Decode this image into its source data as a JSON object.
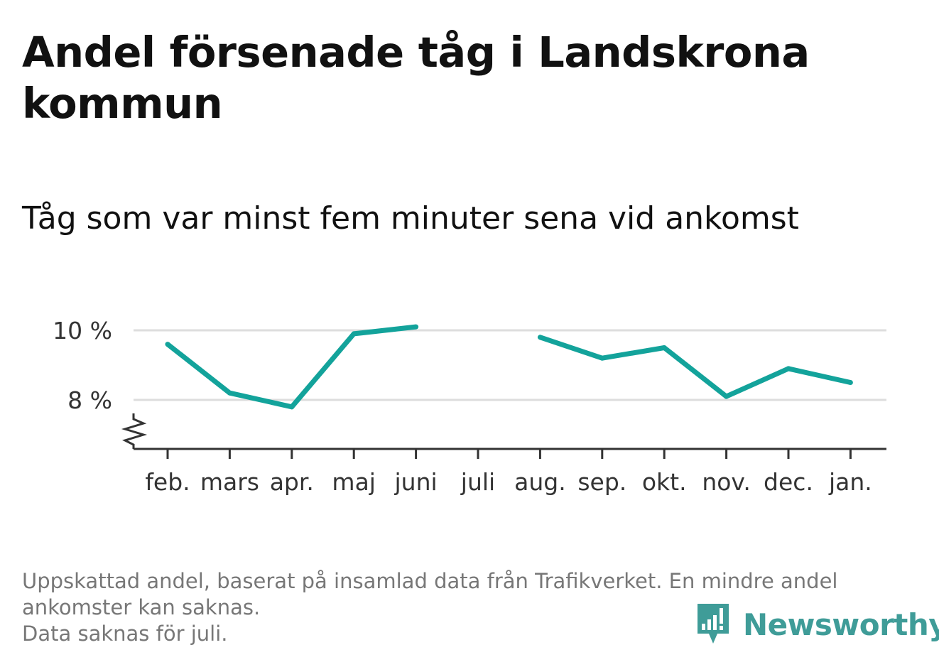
{
  "header": {
    "title": "Andel försenade tåg i Landskrona kommun",
    "subtitle": "Tåg som var minst fem minuter sena vid ankomst"
  },
  "footnote": {
    "line1": "Uppskattad andel, baserat på insamlad data från Trafikverket. En mindre andel",
    "line2": "ankomster kan saknas.",
    "line3": "Data saknas för juli."
  },
  "brand": {
    "name": "Newsworthy",
    "logo_icon": "newsworthy-logo-icon",
    "color": "#3f9c98"
  },
  "colors": {
    "line": "#13a39b",
    "grid": "#dddddd",
    "axis": "#333333"
  },
  "chart_data": {
    "type": "line",
    "title": "Andel försenade tåg i Landskrona kommun",
    "subtitle": "Tåg som var minst fem minuter sena vid ankomst",
    "categories": [
      "feb.",
      "mars",
      "apr.",
      "maj",
      "juni",
      "juli",
      "aug.",
      "sep.",
      "okt.",
      "nov.",
      "dec.",
      "jan."
    ],
    "series": [
      {
        "values": [
          9.6,
          8.2,
          7.8,
          9.9,
          10.1,
          null,
          9.8,
          9.2,
          9.5,
          8.1,
          8.9,
          8.5
        ]
      }
    ],
    "y_ticks": [
      8,
      10
    ],
    "y_tick_labels": [
      "8 %",
      "10 %"
    ],
    "ylim": [
      6.6,
      10.5
    ],
    "y_axis_broken": true,
    "grid": true,
    "legend": "none",
    "missing_note": "Data saknas för juli."
  }
}
